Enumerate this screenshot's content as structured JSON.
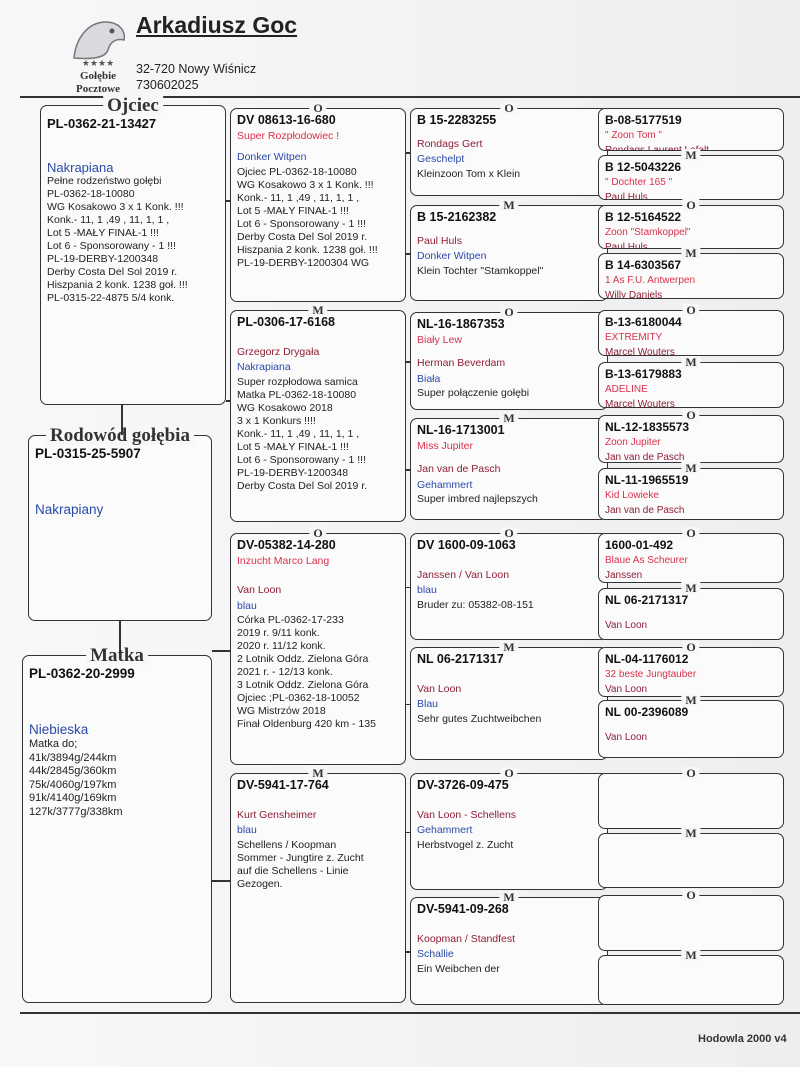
{
  "header": {
    "title": "Arkadiusz Goc",
    "address": "32-720 Nowy Wiśnicz",
    "phone": "730602025",
    "stars": "★★★★",
    "logo": "Gołębie Pocztowe"
  },
  "subject": {
    "label": "Rodowód gołębia",
    "ring": "PL-0315-25-5907",
    "color": "Nakrapiany"
  },
  "father": {
    "label": "Ojciec",
    "ring": "PL-0362-21-13427",
    "color": "Nakrapiana",
    "notes": [
      "Pełne rodzeństwo gołębi",
      "PL-0362-18-10080",
      "WG Kosakowo 3 x 1 Konk. !!!",
      "Konk.- 11, 1 ,49 , 11, 1, 1 ,",
      "Lot 5 -MAŁY FINAŁ-1 !!!",
      "Lot 6 - Sponsorowany - 1 !!!",
      "PL-19-DERBY-1200348",
      "Derby Costa Del Sol 2019 r.",
      "Hiszpania 2 konk. 1238 goł. !!!",
      "PL-0315-22-4875 5/4 konk."
    ]
  },
  "mother": {
    "label": "Matka",
    "ring": "PL-0362-20-2999",
    "color": "Niebieska",
    "notes": [
      "Matka do;",
      "41k/3894g/244km",
      "44k/2845g/360km",
      "75k/4060g/197km",
      "91k/4140g/169km",
      "127k/3777g/338km"
    ]
  },
  "generation2": [
    {
      "sex": "O",
      "ring": "DV 08613-16-680",
      "name": "Super Rozpłodowiec !",
      "color": "Donker Witpen",
      "notes": [
        "Ojciec PL-0362-18-10080",
        "WG Kosakowo 3 x 1 Konk. !!!",
        "Konk.- 11, 1 ,49 , 11, 1, 1 ,",
        "Lot 5 -MAŁY FINAŁ-1 !!!",
        "Lot 6 - Sponsorowany - 1 !!!",
        "Derby Costa Del Sol 2019 r.",
        "Hiszpania 2 konk. 1238 goł. !!!",
        "PL-19-DERBY-1200304 WG"
      ]
    },
    {
      "sex": "M",
      "ring": "PL-0306-17-6168",
      "breeder": "Grzegorz Drygała",
      "color": "Nakrapiana",
      "notes": [
        "Super rozpłodowa samica",
        "Matka PL-0362-18-10080",
        "WG Kosakowo 2018",
        "3 x 1 Konkurs !!!!",
        "Konk.- 11, 1 ,49 , 11, 1, 1 ,",
        "Lot 5 -MAŁY FINAŁ-1 !!!",
        "Lot 6 - Sponsorowany - 1 !!!",
        "PL-19-DERBY-1200348",
        "Derby Costa Del Sol 2019 r."
      ]
    },
    {
      "sex": "O",
      "ring": "DV-05382-14-280",
      "name": "Inzucht Marco Lang",
      "breeder": "Van Loon",
      "color": "blau",
      "notes": [
        "Córka PL-0362-17-233",
        "2019 r. 9/11 konk.",
        "2020 r. 11/12 konk.",
        "2 Lotnik Oddz. Zielona Góra",
        "2021 r. - 12/13 konk.",
        "3 Lotnik Oddz. Zielona Góra",
        "Ojciec ;PL-0362-18-10052",
        "WG Mistrzów 2018",
        "Finał Oldenburg 420 km - 135"
      ]
    },
    {
      "sex": "M",
      "ring": "DV-5941-17-764",
      "breeder": "Kurt Gensheimer",
      "color": "blau",
      "notes": [
        "Schellens / Koopman",
        "Sommer - Jungtire z. Zucht",
        "auf die Schellens - Linie",
        "Gezogen."
      ]
    }
  ],
  "generation3": [
    {
      "sex": "O",
      "ring": "B 15-2283255",
      "breeder": "Rondags Gert",
      "color": "Geschelpt",
      "notes": [
        "Kleinzoon Tom x Klein"
      ]
    },
    {
      "sex": "M",
      "ring": "B 15-2162382",
      "breeder": "Paul Huls",
      "color": "Donker Witpen",
      "notes": [
        "Klein Tochter  \"Stamkoppel\""
      ]
    },
    {
      "sex": "O",
      "ring": "NL-16-1867353",
      "name": "Biały Lew",
      "breeder": "Herman Beverdam",
      "color": "Biała",
      "notes": [
        "Super połączenie gołębi"
      ]
    },
    {
      "sex": "M",
      "ring": "NL-16-1713001",
      "name": "Miss Jupiter",
      "breeder": "Jan van de Pasch",
      "color": "Gehammert",
      "notes": [
        "Super imbred najlepszych"
      ]
    },
    {
      "sex": "O",
      "ring": "DV 1600-09-1063",
      "breeder": "Janssen / Van Loon",
      "color": "blau",
      "notes": [
        "Bruder zu: 05382-08-151"
      ]
    },
    {
      "sex": "M",
      "ring": "NL 06-2171317",
      "breeder": "Van Loon",
      "color": "Blau",
      "notes": [
        "Sehr gutes Zuchtweibchen"
      ]
    },
    {
      "sex": "O",
      "ring": "DV-3726-09-475",
      "breeder": "Van Loon - Schellens",
      "color": "Gehammert",
      "notes": [
        "Herbstvogel z. Zucht"
      ]
    },
    {
      "sex": "M",
      "ring": "DV-5941-09-268",
      "breeder": "Koopman / Standfest",
      "color": "Schallie",
      "notes": [
        "Ein Weibchen der"
      ]
    }
  ],
  "generation4": [
    {
      "ring": "B-08-5177519",
      "name": "\" Zoon Tom \"",
      "breeder": "Rondags Laurent Lafelt"
    },
    {
      "sex": "M",
      "ring": "B 12-5043226",
      "name": "\" Dochter 165 \"",
      "breeder": "Paul Huls"
    },
    {
      "sex": "O",
      "ring": "B 12-5164522",
      "name": "Zoon \"Stamkoppel\"",
      "breeder": "Paul Huls"
    },
    {
      "sex": "M",
      "ring": "B 14-6303567",
      "name": "1 As F.U. Antwerpen",
      "breeder": "Willy Daniels"
    },
    {
      "sex": "O",
      "ring": "B-13-6180044",
      "name": "EXTREMITY",
      "breeder": "Marcel Wouters"
    },
    {
      "sex": "M",
      "ring": "B-13-6179883",
      "name": "ADELINE",
      "breeder": "Marcel Wouters"
    },
    {
      "sex": "O",
      "ring": "NL-12-1835573",
      "name": "Zoon Jupiter",
      "breeder": "Jan van de Pasch"
    },
    {
      "sex": "M",
      "ring": "NL-11-1965519",
      "name": "Kid Lowieke",
      "breeder": "Jan van de Pasch"
    },
    {
      "sex": "O",
      "ring": "1600-01-492",
      "name": "Blaue As Scheurer",
      "breeder": "Janssen"
    },
    {
      "sex": "M",
      "ring": "NL 06-2171317",
      "breeder": "Van Loon"
    },
    {
      "sex": "O",
      "ring": "NL-04-1176012",
      "name": "32 beste Jungtauber",
      "breeder": "Van Loon"
    },
    {
      "sex": "M",
      "ring": "NL 00-2396089",
      "breeder": "Van Loon"
    },
    {
      "sex": "O"
    },
    {
      "sex": "M"
    },
    {
      "sex": "O"
    },
    {
      "sex": "M"
    }
  ],
  "footer": "Hodowla 2000 v4"
}
